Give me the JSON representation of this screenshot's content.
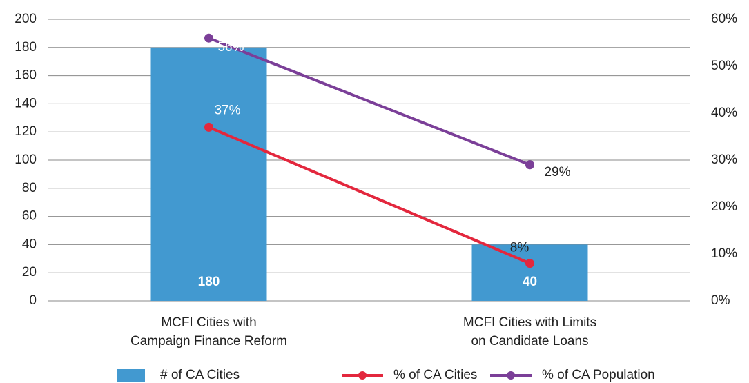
{
  "chart_data": {
    "type": "combo",
    "categories": [
      "MCFI Cities with\nCampaign Finance Reform",
      "MCFI Cities with Limits\non Candidate Loans"
    ],
    "series": [
      {
        "name": "# of CA Cities",
        "type": "bar",
        "axis": "y",
        "color": "#4299d0",
        "values": [
          180,
          40
        ]
      },
      {
        "name": "% of CA Cities",
        "type": "line",
        "axis": "y2",
        "color": "#e3273d",
        "values": [
          37,
          8
        ],
        "value_labels": [
          "37%",
          "8%"
        ]
      },
      {
        "name": "% of CA Population",
        "type": "line",
        "axis": "y2",
        "color": "#7b3f98",
        "values": [
          56,
          29
        ],
        "value_labels": [
          "56%",
          "29%"
        ]
      }
    ],
    "ylim": [
      0,
      200
    ],
    "yticks": [
      0,
      20,
      40,
      60,
      80,
      100,
      120,
      140,
      160,
      180,
      200
    ],
    "y2lim": [
      0,
      60
    ],
    "y2ticks": [
      {
        "value": 0,
        "label": "0%"
      },
      {
        "value": 10,
        "label": "10%"
      },
      {
        "value": 20,
        "label": "20%"
      },
      {
        "value": 30,
        "label": "30%"
      },
      {
        "value": 40,
        "label": "40%"
      },
      {
        "value": 50,
        "label": "50%"
      },
      {
        "value": 60,
        "label": "60%"
      }
    ],
    "grid": true,
    "legend": "bottom"
  }
}
